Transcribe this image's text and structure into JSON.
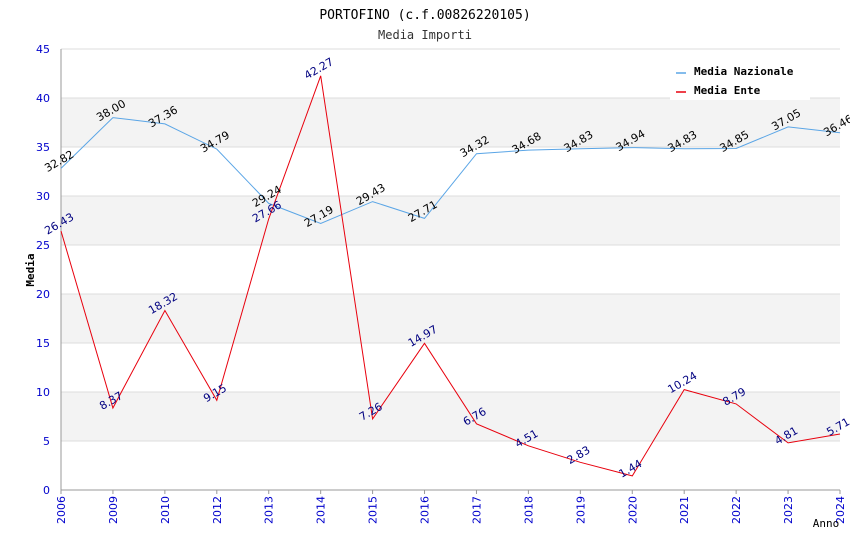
{
  "chart_data": {
    "type": "line",
    "title": "PORTOFINO (c.f.00826220105)",
    "subtitle": "Media Importi",
    "xlabel": "Anno",
    "ylabel": "Media",
    "ylim": [
      0,
      45
    ],
    "yticks": [
      0,
      5,
      10,
      15,
      20,
      25,
      30,
      35,
      40,
      45
    ],
    "categories": [
      "2006",
      "2009",
      "2010",
      "2012",
      "2013",
      "2014",
      "2015",
      "2016",
      "2017",
      "2018",
      "2019",
      "2020",
      "2021",
      "2022",
      "2023",
      "2024"
    ],
    "legend_position": "top-right",
    "grid": true,
    "series": [
      {
        "name": "Media Nazionale",
        "color": "#5aa5e6",
        "label_color": "#000000",
        "values": [
          32.82,
          38.0,
          37.36,
          34.79,
          29.24,
          27.19,
          29.43,
          27.71,
          34.32,
          34.68,
          34.83,
          34.94,
          34.83,
          34.85,
          37.05,
          36.46
        ],
        "labels": [
          "32.82",
          "38.00",
          "37.36",
          "34.79",
          "29.24",
          "27.19",
          "29.43",
          "27.71",
          "34.32",
          "34.68",
          "34.83",
          "34.94",
          "34.83",
          "34.85",
          "37.05",
          "36.46"
        ]
      },
      {
        "name": "Media Ente",
        "color": "#e8000d",
        "label_color": "#000080",
        "values": [
          26.43,
          8.37,
          18.32,
          9.15,
          27.66,
          42.27,
          7.26,
          14.97,
          6.76,
          4.51,
          2.83,
          1.44,
          10.24,
          8.79,
          4.81,
          5.71
        ],
        "labels": [
          "26.43",
          "8.37",
          "18.32",
          "9.15",
          "27.66",
          "42.27",
          "7.26",
          "14.97",
          "6.76",
          "4.51",
          "2.83",
          "1.44",
          "10.24",
          "8.79",
          "4.81",
          "5.71"
        ]
      }
    ]
  }
}
